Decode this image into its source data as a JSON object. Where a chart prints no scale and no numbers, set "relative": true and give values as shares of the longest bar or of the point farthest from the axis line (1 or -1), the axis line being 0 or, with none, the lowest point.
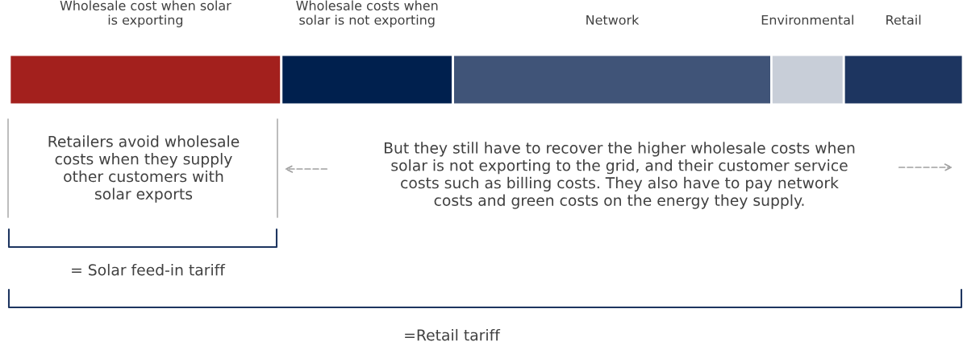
{
  "chart_data": {
    "type": "bar",
    "orientation": "horizontal",
    "stacked": true,
    "relative": true,
    "legend": false,
    "categories": [
      null
    ],
    "series": [
      {
        "name": "Wholesale cost when solar\nis exporting",
        "color": "#a3201d",
        "values": [
          0.285
        ]
      },
      {
        "name": "Wholesale costs when\nsolar is not exporting",
        "color": "#00204e",
        "values": [
          0.18
        ]
      },
      {
        "name": "Network",
        "color": "#405478",
        "values": [
          0.334
        ]
      },
      {
        "name": "Environmental",
        "color": "#c8ced8",
        "values": [
          0.076
        ]
      },
      {
        "name": "Retail",
        "color": "#1d3560",
        "values": [
          0.125
        ]
      }
    ],
    "annotations": [
      "Retailers avoid wholesale\ncosts when they supply\nother customers with\nsolar exports",
      "But they still have to recover the higher wholesale costs when\nsolar is not exporting to the grid, and their customer service\ncosts such as billing costs. They also have to pay network\ncosts and green costs on the energy they supply.",
      "= Solar feed-in tariff",
      "=Retail tariff"
    ]
  }
}
